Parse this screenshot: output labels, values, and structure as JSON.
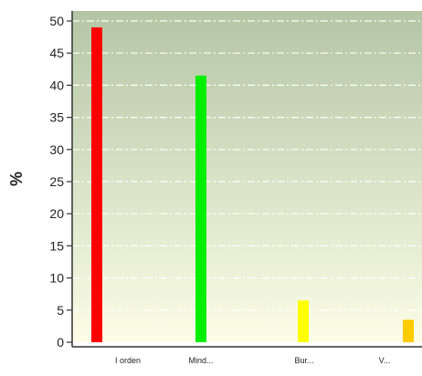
{
  "chart_data": {
    "type": "bar",
    "categories": [
      "I orden",
      "Mind...",
      "Bur...",
      "V..."
    ],
    "values": [
      49,
      41.5,
      6.5,
      3.5
    ],
    "bar_colors": [
      "#ff0000",
      "#00ee00",
      "#ffff00",
      "#ffcc00"
    ],
    "xlabel": "",
    "ylabel": "%",
    "ylim": [
      0,
      50
    ],
    "y_ticks": [
      "0",
      "5",
      "10",
      "15",
      "20",
      "25",
      "30",
      "35",
      "40",
      "45",
      "50"
    ],
    "grid": true,
    "background_gradient": [
      "#b3c6a4",
      "#fcfde6"
    ],
    "legend": "none"
  }
}
